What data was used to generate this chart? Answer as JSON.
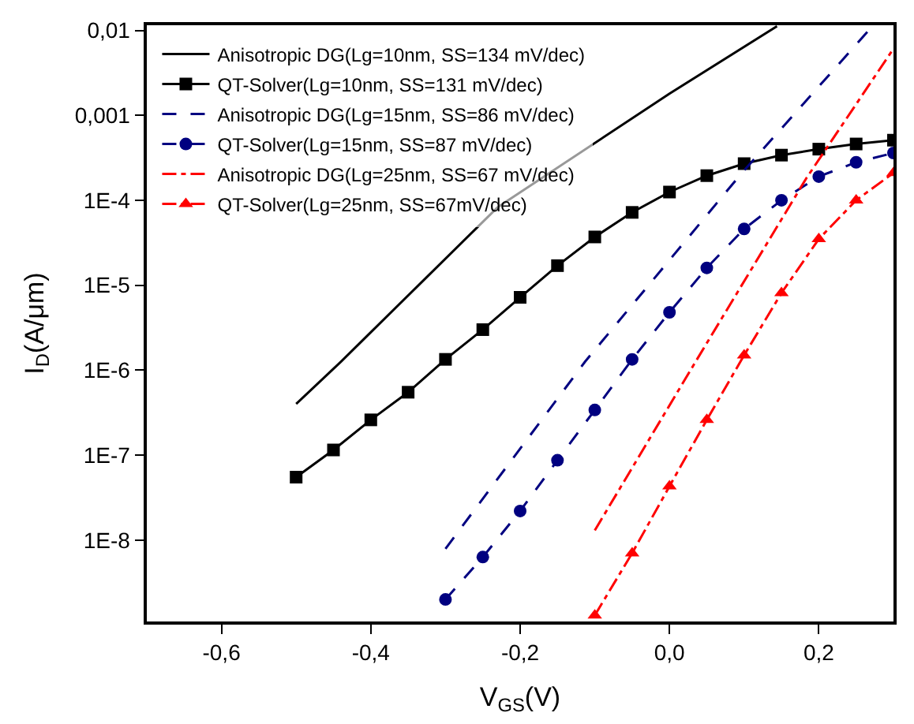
{
  "chart_data": {
    "type": "line",
    "xlabel": "V$_{GS}$(V)",
    "ylabel": "I$_{D}$(A/μm)",
    "log": "y",
    "legend": "top left",
    "xlim": [
      -0.7,
      0.3
    ],
    "xticks": [
      {
        "value": -0.6,
        "label": "-0,6"
      },
      {
        "value": -0.4,
        "label": "-0,4"
      },
      {
        "value": -0.2,
        "label": "-0,2"
      },
      {
        "value": 0.0,
        "label": "0,0"
      },
      {
        "value": 0.2,
        "label": "0,2"
      }
    ],
    "ylim": [
      1.1e-09,
      0.0115
    ],
    "yticks": [
      {
        "value": 0.01,
        "label": "0,01"
      },
      {
        "value": 0.001,
        "label": "0,001"
      },
      {
        "value": 0.0001,
        "label": "1E-4"
      },
      {
        "value": 1e-05,
        "label": "1E-5"
      },
      {
        "value": 1e-06,
        "label": "1E-6"
      },
      {
        "value": 1e-07,
        "label": "1E-7"
      },
      {
        "value": 1e-08,
        "label": "1E-8"
      }
    ],
    "series": [
      {
        "name": "Anisotropic DG(Lg=10nm, SS=134 mV/dec)",
        "color": "#000000",
        "line_style": "solid",
        "marker": "none",
        "x": [
          -0.5,
          -0.44,
          -0.23,
          0.0,
          0.144
        ],
        "values": [
          4e-07,
          1.26e-06,
          8.3e-05,
          0.0018,
          0.0112
        ]
      },
      {
        "name": "QT-Solver(Lg=10nm, SS=131 mV/dec)",
        "color": "#000000",
        "line_style": "solid",
        "marker": "square",
        "x": [
          -0.5,
          -0.45,
          -0.4,
          -0.35,
          -0.3,
          -0.25,
          -0.2,
          -0.15,
          -0.1,
          -0.05,
          0.0,
          0.05,
          0.1,
          0.15,
          0.2,
          0.25,
          0.3
        ],
        "values": [
          5.5e-08,
          1.15e-07,
          2.6e-07,
          5.5e-07,
          1.34e-06,
          3e-06,
          7.2e-06,
          1.7e-05,
          3.7e-05,
          7.2e-05,
          0.000125,
          0.000195,
          0.00027,
          0.00034,
          0.0004,
          0.00046,
          0.00051
        ]
      },
      {
        "name": "Anisotropic DG(Lg=15nm, SS=86 mV/dec)",
        "color": "#000080",
        "line_style": "dashed",
        "marker": "none",
        "x": [
          -0.3,
          -0.113,
          0.097,
          0.269
        ],
        "values": [
          7.9e-09,
          1.26e-06,
          0.00021,
          0.0105
        ]
      },
      {
        "name": "QT-Solver(Lg=15nm, SS=87 mV/dec)",
        "color": "#000080",
        "line_style": "dashed",
        "marker": "circle",
        "x": [
          -0.3,
          -0.25,
          -0.2,
          -0.15,
          -0.1,
          -0.05,
          0.0,
          0.05,
          0.1,
          0.15,
          0.2,
          0.25,
          0.3
        ],
        "values": [
          2e-09,
          6.3e-09,
          2.2e-08,
          8.7e-08,
          3.4e-07,
          1.34e-06,
          4.8e-06,
          1.6e-05,
          4.6e-05,
          0.0001,
          0.00019,
          0.00028,
          0.00036
        ]
      },
      {
        "name": "Anisotropic DG(Lg=25nm, SS=67 mV/dec)",
        "color": "#ff0000",
        "line_style": "dashdot",
        "marker": "none",
        "x": [
          -0.1,
          0.035,
          0.183,
          0.3
        ],
        "values": [
          1.3e-08,
          1.26e-06,
          0.00018,
          0.0061
        ]
      },
      {
        "name": "QT-Solver(Lg=25nm, SS=67mV/dec)",
        "color": "#ff0000",
        "line_style": "dashdot",
        "marker": "triangle",
        "x": [
          -0.1,
          -0.05,
          0.0,
          0.05,
          0.1,
          0.15,
          0.2,
          0.25,
          0.3
        ],
        "values": [
          1.3e-09,
          7e-09,
          4.3e-08,
          2.6e-07,
          1.5e-06,
          8.1e-06,
          3.5e-05,
          0.0001,
          0.00021
        ]
      }
    ]
  }
}
